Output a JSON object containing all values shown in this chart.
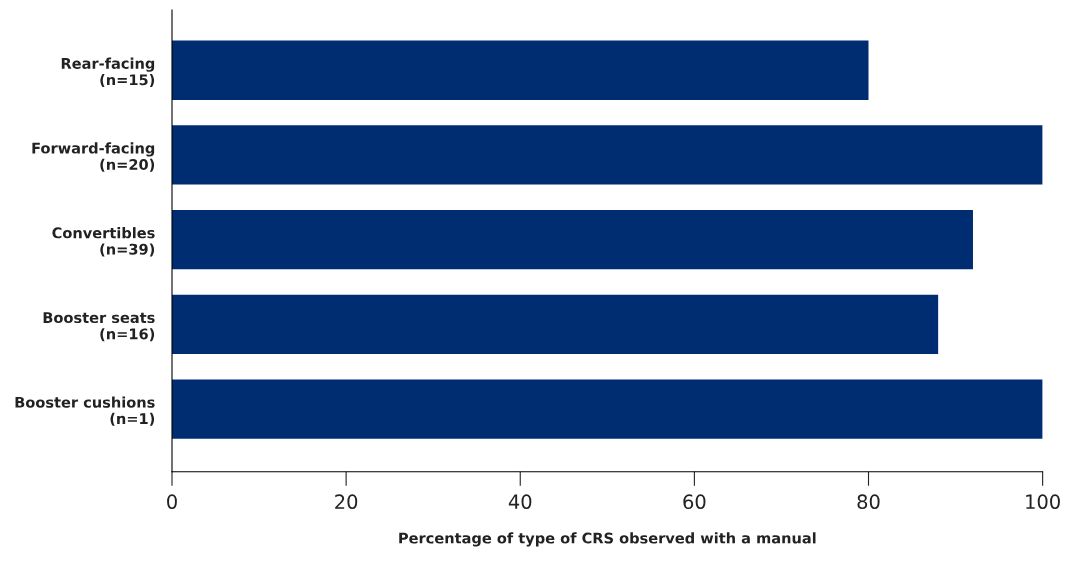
{
  "chart_data": {
    "type": "bar",
    "orientation": "horizontal",
    "categories": [
      "Rear-facing\n(n=15)",
      "Forward-facing\n(n=20)",
      "Convertibles\n(n=39)",
      "Booster seats\n(n=16)",
      "Booster cushions\n(n=1)"
    ],
    "values": [
      80,
      100,
      92,
      88,
      100
    ],
    "color": "#002d72",
    "xlim": [
      0,
      100
    ],
    "xticks": [
      0,
      20,
      40,
      60,
      80,
      100
    ],
    "xlabel": "Percentage of type of CRS observed with a manual",
    "grid": false,
    "legend": false
  }
}
